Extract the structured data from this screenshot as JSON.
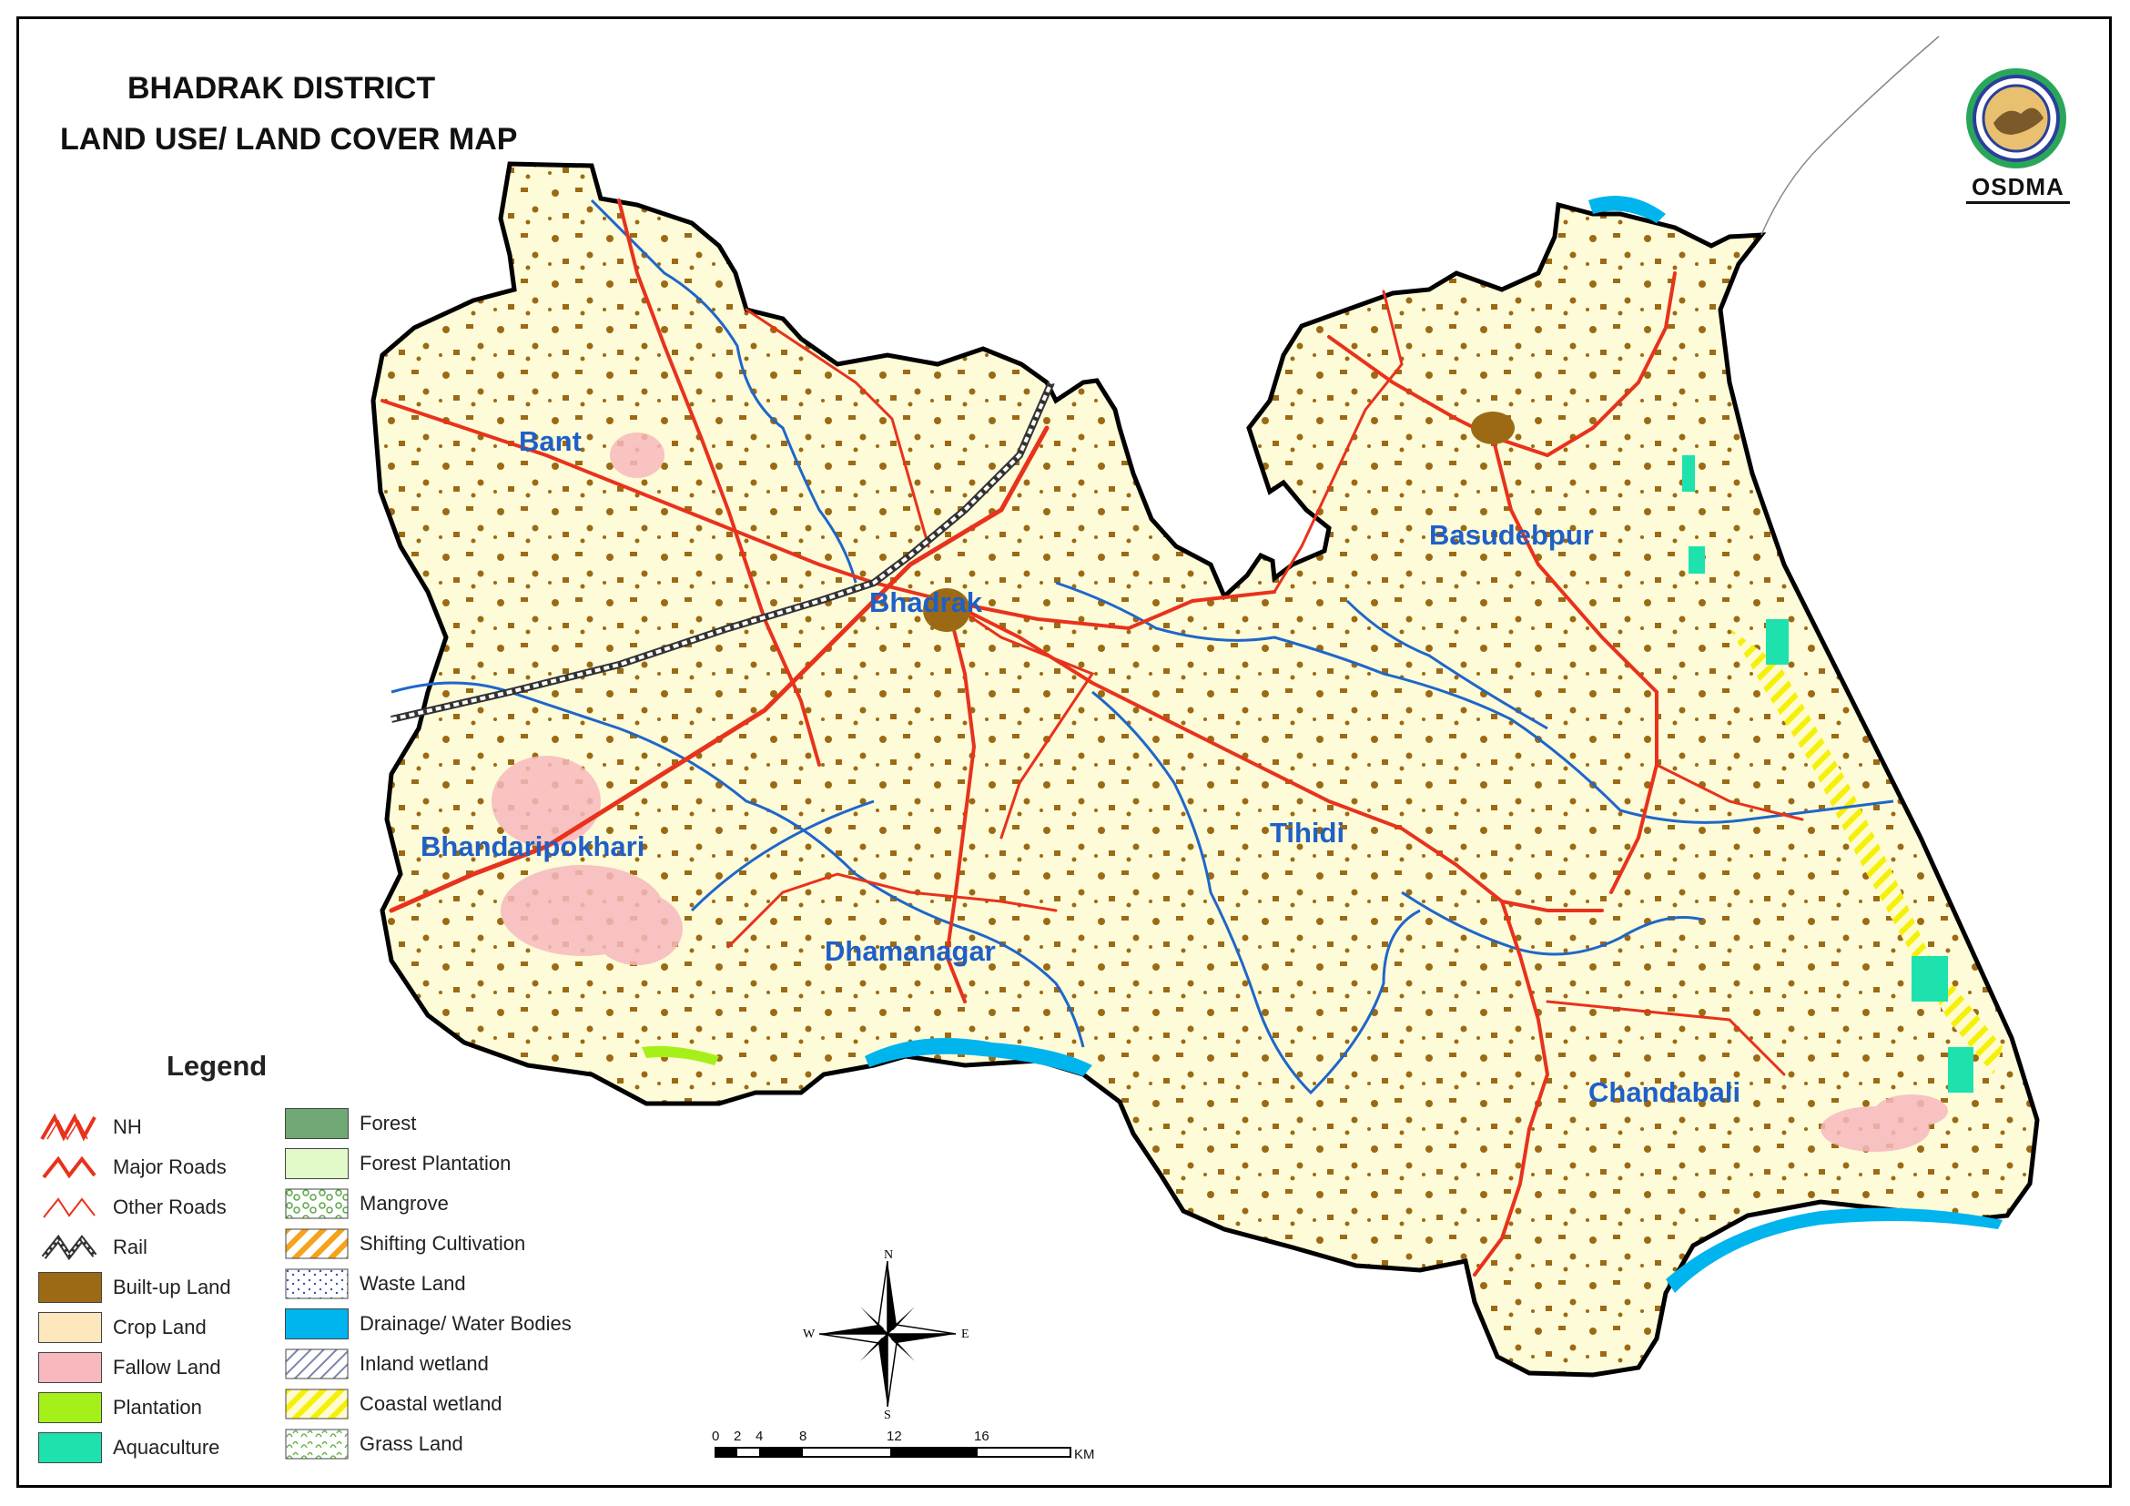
{
  "title": {
    "line1": "BHADRAK DISTRICT",
    "line2": "LAND USE/ LAND COVER MAP"
  },
  "logo": {
    "text": "OSDMA",
    "icon": "osdma-seal"
  },
  "places": [
    {
      "id": "bant",
      "label": "Bant"
    },
    {
      "id": "bhadrak",
      "label": "Bhadrak"
    },
    {
      "id": "basudebpur",
      "label": "Basudebpur"
    },
    {
      "id": "bhandaripokhari",
      "label": "Bhandaripokhari"
    },
    {
      "id": "tihidi",
      "label": "Tihidi"
    },
    {
      "id": "dhamanagar",
      "label": "Dhamanagar"
    },
    {
      "id": "chandabali",
      "label": "Chandabali"
    }
  ],
  "legend": {
    "title": "Legend",
    "left": [
      {
        "label": "NH",
        "symbol": "nh"
      },
      {
        "label": "Major Roads",
        "symbol": "major-road"
      },
      {
        "label": "Other Roads",
        "symbol": "other-road"
      },
      {
        "label": "Rail",
        "symbol": "rail"
      },
      {
        "label": "Built-up Land",
        "symbol": "fill",
        "color": "#9c6a14"
      },
      {
        "label": "Crop Land",
        "symbol": "fill",
        "color": "#fde7bd"
      },
      {
        "label": "Fallow Land",
        "symbol": "fill",
        "color": "#f7b9bd"
      },
      {
        "label": "Plantation",
        "symbol": "fill",
        "color": "#a6f01a"
      },
      {
        "label": "Aquaculture",
        "symbol": "fill",
        "color": "#1de2ad"
      }
    ],
    "right": [
      {
        "label": "Forest",
        "symbol": "fill",
        "color": "#6fa874"
      },
      {
        "label": "Forest Plantation",
        "symbol": "fill",
        "color": "#e2f9c9"
      },
      {
        "label": "Mangrove",
        "symbol": "mangrove"
      },
      {
        "label": "Shifting Cultivation",
        "symbol": "hatch-orange"
      },
      {
        "label": "Waste Land",
        "symbol": "waste"
      },
      {
        "label": "Drainage/ Water Bodies",
        "symbol": "fill",
        "color": "#00b4ee"
      },
      {
        "label": "Inland wetland",
        "symbol": "hatch-grey"
      },
      {
        "label": "Coastal wetland",
        "symbol": "hatch-yellow"
      },
      {
        "label": "Grass Land",
        "symbol": "grass"
      }
    ]
  },
  "compass": {
    "n": "N",
    "s": "S",
    "e": "E",
    "w": "W"
  },
  "scale": {
    "ticks": [
      "0",
      "2",
      "4",
      "8",
      "12",
      "16"
    ],
    "unit": "KM"
  },
  "colors": {
    "district_fill": "#fdfbd8",
    "builtup": "#9c6a14",
    "road": "#e8321c",
    "river": "#1f66c9",
    "water": "#00b4ee",
    "fallow": "#f7b9bd",
    "plantation": "#a6f01a",
    "aquaculture": "#1de2ad",
    "coastal_wetland": "#f5f007",
    "place_label": "#1f5fc6"
  }
}
